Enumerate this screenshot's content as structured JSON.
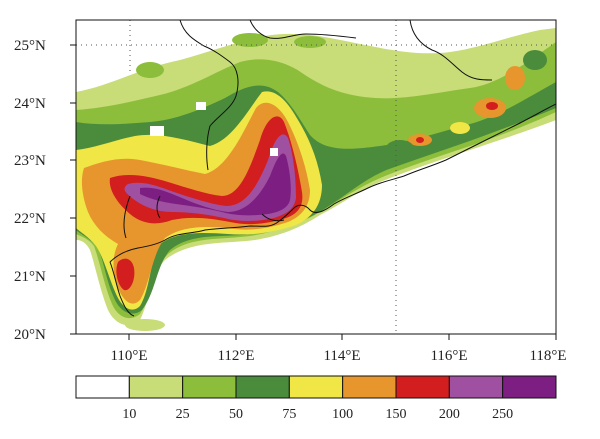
{
  "map": {
    "lat_labels": [
      "25°N",
      "24°N",
      "23°N",
      "22°N",
      "21°N",
      "20°N"
    ],
    "lon_labels": [
      "110°E",
      "112°E",
      "114°E",
      "116°E",
      "118°E"
    ],
    "lat_range": [
      20,
      25.4
    ],
    "lon_range": [
      109,
      118
    ],
    "gridlines": "dotted at 25°N and 115°E"
  },
  "colorbar": {
    "levels": [
      "10",
      "25",
      "50",
      "75",
      "100",
      "150",
      "200",
      "250"
    ],
    "colors": [
      "#ffffff",
      "#c8dc78",
      "#8cbe3c",
      "#4b8c3c",
      "#f0e646",
      "#e6962d",
      "#d21e1e",
      "#a050a0",
      "#7d1e82"
    ]
  }
}
